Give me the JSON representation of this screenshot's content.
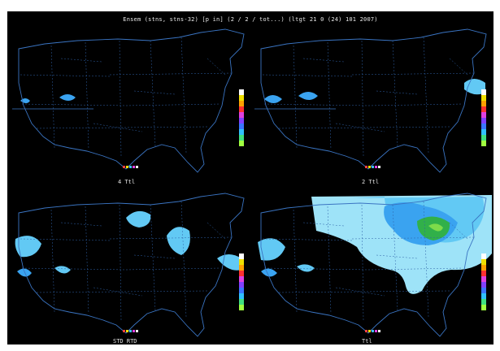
{
  "figure": {
    "title": "Ensem (stns, stns-32) [p in] (2 / 2 / tot...) (ltgt 21 0 (24) 101 2007)"
  },
  "panels": [
    {
      "id": "top-left",
      "label": "4 Ttl"
    },
    {
      "id": "top-right",
      "label": "2 Ttl"
    },
    {
      "id": "bottom-left",
      "label": "STD RTD"
    },
    {
      "id": "bottom-right",
      "label": "Ttl"
    }
  ],
  "legend": {
    "colors": [
      "#ffffff",
      "#f0e000",
      "#ffa000",
      "#ff3030",
      "#e040e0",
      "#8040ff",
      "#3a74ff",
      "#30c0ff",
      "#40e080",
      "#a0ff40"
    ],
    "ticks": [
      "1",
      "2",
      "3",
      "4",
      "5",
      "6",
      "7",
      "8"
    ]
  },
  "mini_key": {
    "colors": [
      "#ff4040",
      "#ffe000",
      "#40c0ff",
      "#e040e0",
      "#ffffff"
    ]
  }
}
